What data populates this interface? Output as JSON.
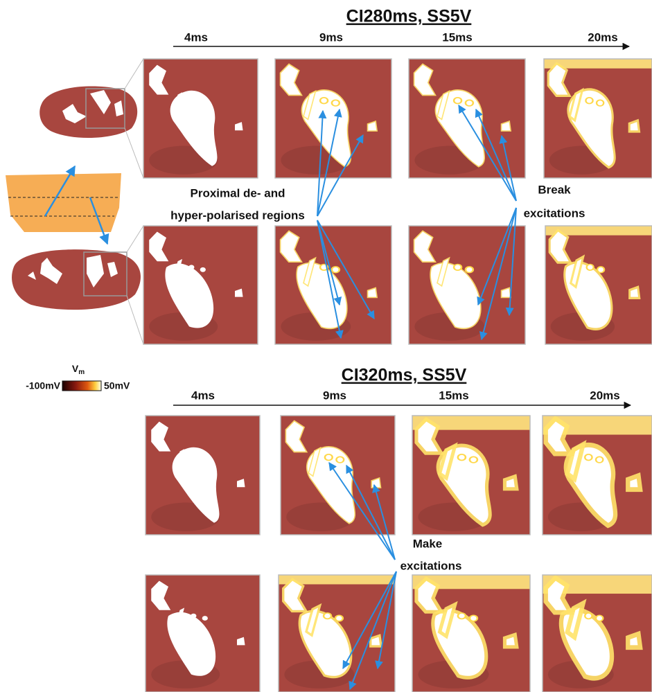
{
  "sections": [
    {
      "title": "CI280ms, SS5V",
      "times": [
        "4ms",
        "9ms",
        "15ms",
        "20ms"
      ]
    },
    {
      "title": "CI320ms, SS5V",
      "times": [
        "4ms",
        "9ms",
        "15ms",
        "20ms"
      ]
    }
  ],
  "annotations": {
    "proximal": [
      "Proximal de- and",
      "hyper-polarised regions"
    ],
    "break": [
      "Break",
      "excitations"
    ],
    "make": [
      "Make",
      "excitations"
    ]
  },
  "colorbar": {
    "symbol": "V",
    "subscript": "m",
    "min_label": "-100mV",
    "max_label": "50mV"
  }
}
